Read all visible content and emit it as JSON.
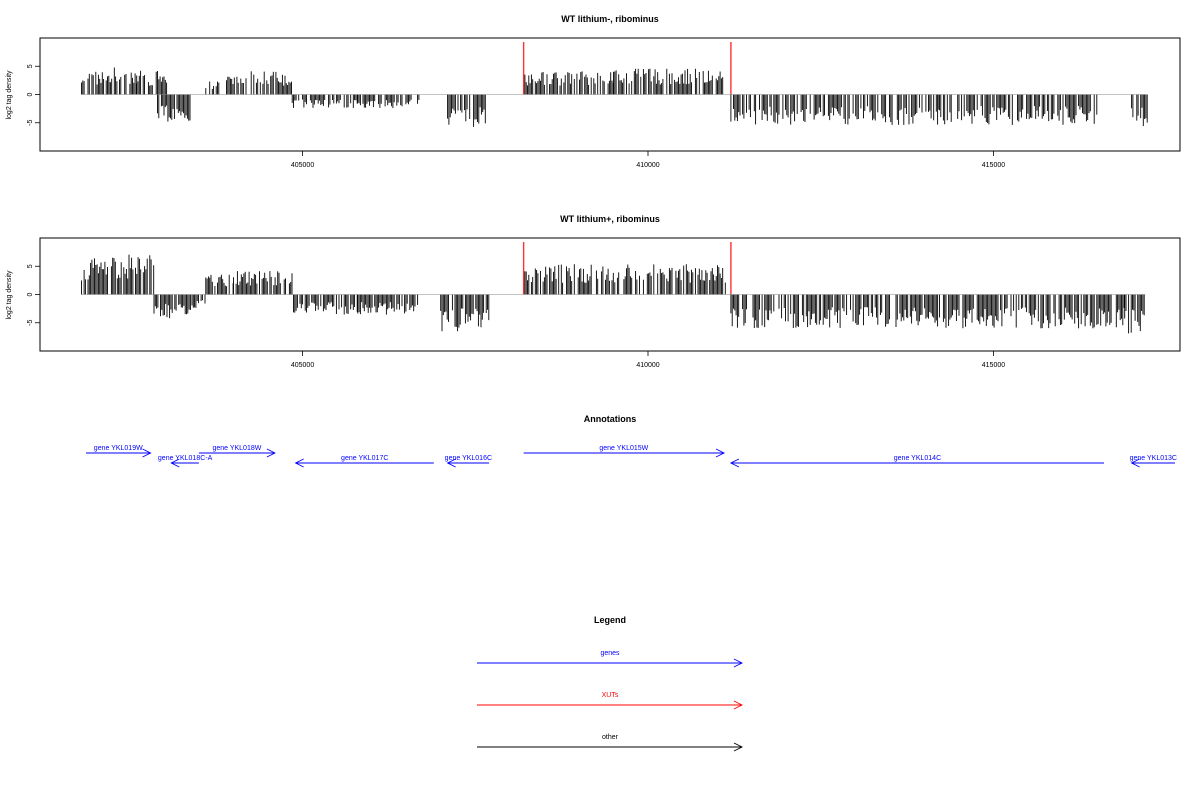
{
  "chart_data": [
    {
      "type": "bar",
      "title": "WT lithium-, ribominus",
      "ylabel": "log2 tag density",
      "xlim": [
        401200,
        417700
      ],
      "ylim": [
        -10,
        10
      ],
      "xticks": [
        405000,
        410000,
        415000
      ],
      "yticks": [
        -5,
        0,
        5
      ],
      "markers": [
        408200,
        411200
      ],
      "bars": [
        {
          "x": [
            401800,
            402200
          ],
          "y": 3.5
        },
        {
          "x": [
            402200,
            402600
          ],
          "y": 4
        },
        {
          "x": [
            402600,
            403050
          ],
          "y": 3.5
        },
        {
          "x": [
            402900,
            403400
          ],
          "y": -4
        },
        {
          "x": [
            403600,
            403800
          ],
          "y": 2
        },
        {
          "x": [
            403900,
            404200
          ],
          "y": 3
        },
        {
          "x": [
            404200,
            404850
          ],
          "y": 3.5
        },
        {
          "x": [
            404850,
            405800
          ],
          "y": -2
        },
        {
          "x": [
            405800,
            406700
          ],
          "y": -2
        },
        {
          "x": [
            407100,
            407650
          ],
          "y": -5
        },
        {
          "x": [
            408200,
            409500
          ],
          "y": 3.5
        },
        {
          "x": [
            409500,
            411100
          ],
          "y": 3.8
        },
        {
          "x": [
            411200,
            414200
          ],
          "y": -4.5
        },
        {
          "x": [
            414200,
            416500
          ],
          "y": -4.5
        },
        {
          "x": [
            417000,
            417250
          ],
          "y": -5
        }
      ]
    },
    {
      "type": "bar",
      "title": "WT lithium+, ribominus",
      "ylabel": "log2 tag density",
      "xlim": [
        401200,
        417700
      ],
      "ylim": [
        -10,
        10
      ],
      "xticks": [
        405000,
        410000,
        415000
      ],
      "yticks": [
        -5,
        0,
        5
      ],
      "markers": [
        408200,
        411200
      ],
      "bars": [
        {
          "x": [
            401800,
            402300
          ],
          "y": 5.5
        },
        {
          "x": [
            402300,
            402850
          ],
          "y": 6
        },
        {
          "x": [
            402850,
            403400
          ],
          "y": -3.5
        },
        {
          "x": [
            403400,
            403600
          ],
          "y": -2
        },
        {
          "x": [
            403600,
            404000
          ],
          "y": 3
        },
        {
          "x": [
            404000,
            404850
          ],
          "y": 3.5
        },
        {
          "x": [
            404850,
            405800
          ],
          "y": -3
        },
        {
          "x": [
            405800,
            406700
          ],
          "y": -3
        },
        {
          "x": [
            407000,
            407700
          ],
          "y": -5.5
        },
        {
          "x": [
            408200,
            409500
          ],
          "y": 4.5
        },
        {
          "x": [
            409500,
            411150
          ],
          "y": 4.5
        },
        {
          "x": [
            411200,
            414200
          ],
          "y": -5
        },
        {
          "x": [
            414200,
            416900
          ],
          "y": -5
        },
        {
          "x": [
            416900,
            417200
          ],
          "y": -6
        }
      ]
    }
  ],
  "annotations": {
    "title": "Annotations",
    "genes": [
      {
        "label": "gene YKL019W",
        "start": 401800,
        "end": 402800,
        "strand": "+",
        "row": 0
      },
      {
        "label": "gene YKL018C-A",
        "start": 403100,
        "end": 403500,
        "strand": "-",
        "row": 1
      },
      {
        "label": "gene YKL018W",
        "start": 403500,
        "end": 404600,
        "strand": "+",
        "row": 0
      },
      {
        "label": "gene YKL017C",
        "start": 404900,
        "end": 406900,
        "strand": "-",
        "row": 1
      },
      {
        "label": "gene YKL016C",
        "start": 407100,
        "end": 407700,
        "strand": "-",
        "row": 1
      },
      {
        "label": "gene YKL015W",
        "start": 408200,
        "end": 411100,
        "strand": "+",
        "row": 0
      },
      {
        "label": "gene YKL014C",
        "start": 411200,
        "end": 416600,
        "strand": "-",
        "row": 1
      },
      {
        "label": "gene YKL013C",
        "start": 417000,
        "end": 417700,
        "strand": "-",
        "row": 1
      }
    ]
  },
  "legend": {
    "title": "Legend",
    "items": [
      {
        "label": "genes",
        "color": "#0000ff"
      },
      {
        "label": "XUTs",
        "color": "#ff0000"
      },
      {
        "label": "other",
        "color": "#000000"
      }
    ]
  }
}
